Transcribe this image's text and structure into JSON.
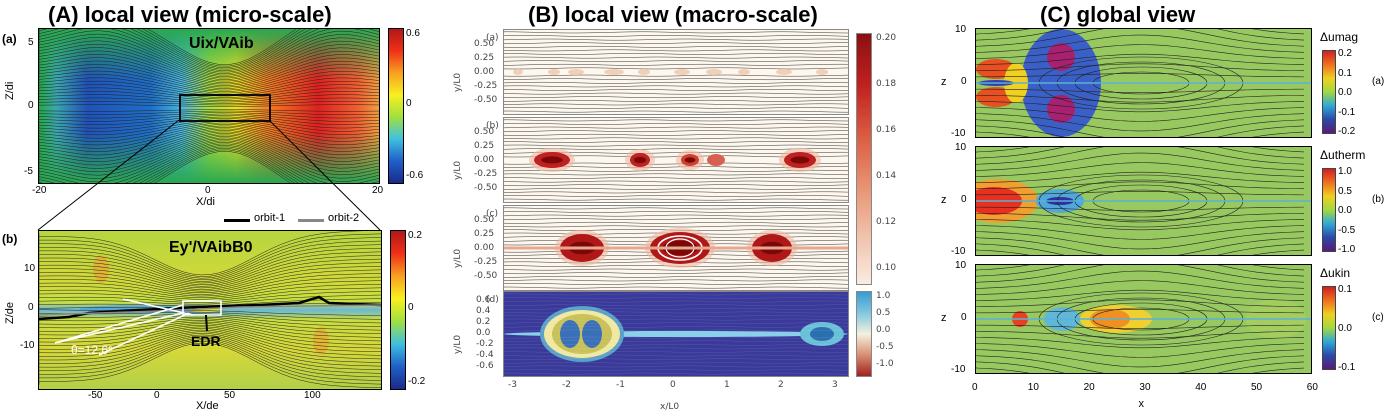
{
  "titles": {
    "A": "(A)  local view (micro-scale)",
    "B": "(B)  local view (macro-scale)",
    "C": "(C)  global view"
  },
  "panelA": {
    "a": {
      "tag": "(a)",
      "label": "Uix/VAib",
      "ylabel": "Z/di",
      "xlabel": "X/di",
      "xticks": [
        "-20",
        "0",
        "20"
      ],
      "yticks": [
        "5",
        "0",
        "-5"
      ],
      "cbar": [
        "0.6",
        "0",
        "-0.6"
      ]
    },
    "b": {
      "tag": "(b)",
      "label": "Ey'/VAibB0",
      "ylabel": "Z/de",
      "xlabel": "X/de",
      "xticks": [
        "-50",
        "0",
        "50",
        "100"
      ],
      "yticks": [
        "10",
        "0",
        "-10"
      ],
      "cbar": [
        "0.2",
        "0",
        "-0.2"
      ],
      "legend": [
        "orbit-1",
        "orbit-2"
      ],
      "angle": "θ=12.6°",
      "edr": "EDR"
    }
  },
  "panelB": {
    "ylabel": "y/L0",
    "xlabel": "x/L0",
    "subs": [
      "(a)",
      "(b)",
      "(c)",
      "(d)"
    ],
    "yticks_top": [
      "0.50",
      "0.25",
      "0.00",
      "-0.25",
      "-0.50"
    ],
    "yticks_d": [
      "0.6",
      "0.4",
      "0.2",
      "0.0",
      "-0.2",
      "-0.4",
      "-0.6"
    ],
    "xticks": [
      "-3",
      "-2",
      "-1",
      "0",
      "1",
      "2",
      "3"
    ],
    "cbar_top": [
      "0.20",
      "0.18",
      "0.16",
      "0.14",
      "0.12",
      "0.10"
    ],
    "cbar_d": [
      "1.0",
      "0.5",
      "0.0",
      "-0.5",
      "-1.0"
    ]
  },
  "panelC": {
    "ylabel": "z",
    "xlabel": "x",
    "yticks": [
      "10",
      "0",
      "-10"
    ],
    "xticks": [
      "0",
      "10",
      "20",
      "30",
      "40",
      "50",
      "60"
    ],
    "rows": [
      {
        "label": "Δumag",
        "tag": "(a)",
        "cbar": [
          "0.2",
          "0.1",
          "0.0",
          "-0.1",
          "-0.2"
        ]
      },
      {
        "label": "Δutherm",
        "tag": "(b)",
        "cbar": [
          "1.0",
          "0.5",
          "0.0",
          "-0.5",
          "-1.0"
        ]
      },
      {
        "label": "Δukin",
        "tag": "(c)",
        "cbar": [
          "0.1",
          "0.0",
          "-0.1"
        ]
      }
    ]
  }
}
